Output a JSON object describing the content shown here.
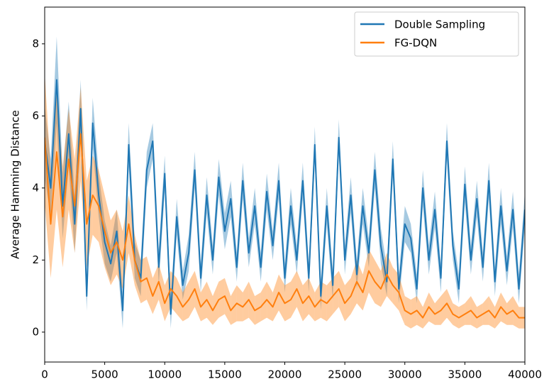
{
  "chart_data": {
    "type": "line",
    "y_label": "Average Hamming Distance",
    "x": [
      0,
      500,
      1000,
      1500,
      2000,
      2500,
      3000,
      3500,
      4000,
      4500,
      5000,
      5500,
      6000,
      6500,
      7000,
      7500,
      8000,
      8500,
      9000,
      9500,
      10000,
      10500,
      11000,
      11500,
      12000,
      12500,
      13000,
      13500,
      14000,
      14500,
      15000,
      15500,
      16000,
      16500,
      17000,
      17500,
      18000,
      18500,
      19000,
      19500,
      20000,
      20500,
      21000,
      21500,
      22000,
      22500,
      23000,
      23500,
      24000,
      24500,
      25000,
      25500,
      26000,
      26500,
      27000,
      27500,
      28000,
      28500,
      29000,
      29500,
      30000,
      30500,
      31000,
      31500,
      32000,
      32500,
      33000,
      33500,
      34000,
      34500,
      35000,
      35500,
      36000,
      36500,
      37000,
      37500,
      38000,
      38500,
      39000,
      39500,
      40000
    ],
    "series": [
      {
        "name": "Double Sampling",
        "color": "#1f77b4",
        "values": [
          5.3,
          4.0,
          7.0,
          3.5,
          5.5,
          3.0,
          6.2,
          1.0,
          5.8,
          3.8,
          2.5,
          1.9,
          2.8,
          0.6,
          5.2,
          2.0,
          1.5,
          4.5,
          5.3,
          1.8,
          4.4,
          0.5,
          3.2,
          1.3,
          2.2,
          4.5,
          1.5,
          3.8,
          2.0,
          4.3,
          2.8,
          3.7,
          1.8,
          4.2,
          2.2,
          3.5,
          1.8,
          3.9,
          2.4,
          4.2,
          1.5,
          3.5,
          2.0,
          4.2,
          1.5,
          5.2,
          1.0,
          3.5,
          1.3,
          5.4,
          2.0,
          3.8,
          1.6,
          3.5,
          2.2,
          4.5,
          2.4,
          1.4,
          4.8,
          1.2,
          3.0,
          2.6,
          1.2,
          4.0,
          2.0,
          3.4,
          1.5,
          5.3,
          2.4,
          1.2,
          4.1,
          2.0,
          3.7,
          1.8,
          4.2,
          1.4,
          3.5,
          1.7,
          3.4,
          1.2,
          3.4
        ],
        "error": [
          1.0,
          0.8,
          1.2,
          0.9,
          0.9,
          0.8,
          0.8,
          0.4,
          0.7,
          0.6,
          0.6,
          0.5,
          0.6,
          0.5,
          0.6,
          0.5,
          0.5,
          0.5,
          0.5,
          0.5,
          0.5,
          0.4,
          0.5,
          0.4,
          0.5,
          0.5,
          0.4,
          0.5,
          0.4,
          0.5,
          0.5,
          0.5,
          0.4,
          0.5,
          0.4,
          0.5,
          0.4,
          0.5,
          0.4,
          0.5,
          0.4,
          0.5,
          0.4,
          0.5,
          0.4,
          0.5,
          0.4,
          0.5,
          0.4,
          0.5,
          0.4,
          0.5,
          0.4,
          0.5,
          0.4,
          0.5,
          0.5,
          0.4,
          0.5,
          0.4,
          0.5,
          0.4,
          0.4,
          0.5,
          0.4,
          0.5,
          0.4,
          0.5,
          0.4,
          0.4,
          0.5,
          0.4,
          0.5,
          0.4,
          0.5,
          0.4,
          0.5,
          0.4,
          0.5,
          0.4,
          0.5
        ]
      },
      {
        "name": "FG-DQN",
        "color": "#ff7f0e",
        "values": [
          5.4,
          3.0,
          5.0,
          3.2,
          4.8,
          3.5,
          5.5,
          3.0,
          3.8,
          3.5,
          2.8,
          2.2,
          2.5,
          2.0,
          3.0,
          2.0,
          1.4,
          1.5,
          1.0,
          1.4,
          0.8,
          1.2,
          1.0,
          0.7,
          0.9,
          1.2,
          0.7,
          0.9,
          0.6,
          0.9,
          1.0,
          0.6,
          0.8,
          0.7,
          0.9,
          0.6,
          0.7,
          0.9,
          0.7,
          1.1,
          0.8,
          0.9,
          1.2,
          0.8,
          1.0,
          0.7,
          0.9,
          0.8,
          1.0,
          1.2,
          0.8,
          1.0,
          1.4,
          1.1,
          1.7,
          1.4,
          1.2,
          1.6,
          1.3,
          1.1,
          0.6,
          0.5,
          0.6,
          0.4,
          0.7,
          0.5,
          0.6,
          0.8,
          0.5,
          0.4,
          0.5,
          0.6,
          0.4,
          0.5,
          0.6,
          0.4,
          0.7,
          0.5,
          0.6,
          0.4,
          0.4
        ],
        "error": [
          1.8,
          1.5,
          1.6,
          1.4,
          1.4,
          1.3,
          1.3,
          1.2,
          1.1,
          1.0,
          1.0,
          0.9,
          0.9,
          0.8,
          0.8,
          0.7,
          0.6,
          0.6,
          0.5,
          0.5,
          0.5,
          0.5,
          0.5,
          0.4,
          0.5,
          0.5,
          0.4,
          0.5,
          0.4,
          0.5,
          0.5,
          0.4,
          0.5,
          0.4,
          0.5,
          0.4,
          0.4,
          0.5,
          0.4,
          0.5,
          0.5,
          0.5,
          0.5,
          0.5,
          0.5,
          0.4,
          0.5,
          0.5,
          0.5,
          0.5,
          0.5,
          0.5,
          0.6,
          0.5,
          0.6,
          0.6,
          0.5,
          0.6,
          0.5,
          0.5,
          0.4,
          0.4,
          0.4,
          0.3,
          0.4,
          0.3,
          0.4,
          0.4,
          0.3,
          0.3,
          0.3,
          0.4,
          0.3,
          0.3,
          0.4,
          0.3,
          0.4,
          0.3,
          0.4,
          0.3,
          0.3
        ]
      }
    ],
    "xlim": [
      0,
      40000
    ],
    "xticks": [
      0,
      5000,
      10000,
      15000,
      20000,
      25000,
      30000,
      35000,
      40000
    ],
    "ylim": [
      -0.83,
      9.02
    ],
    "yticks": [
      0,
      2,
      4,
      6,
      8
    ],
    "legend": "upper right"
  }
}
